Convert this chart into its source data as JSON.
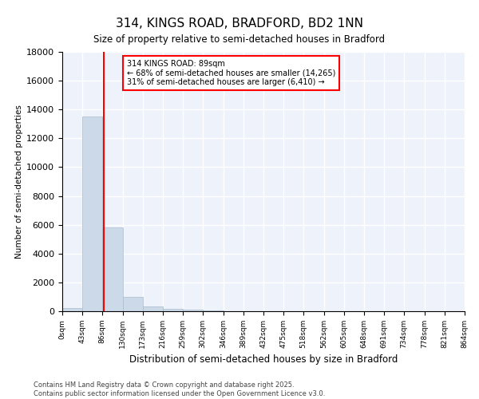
{
  "title": "314, KINGS ROAD, BRADFORD, BD2 1NN",
  "subtitle": "Size of property relative to semi-detached houses in Bradford",
  "xlabel": "Distribution of semi-detached houses by size in Bradford",
  "ylabel": "Number of semi-detached properties",
  "bar_color": "#ccd9e8",
  "bar_edge_color": "#aabccc",
  "background_color": "#eef2fb",
  "grid_color": "#ffffff",
  "red_line_x": 89,
  "annotation_title": "314 KINGS ROAD: 89sqm",
  "annotation_line1": "← 68% of semi-detached houses are smaller (14,265)",
  "annotation_line2": "31% of semi-detached houses are larger (6,410) →",
  "footer_line1": "Contains HM Land Registry data © Crown copyright and database right 2025.",
  "footer_line2": "Contains public sector information licensed under the Open Government Licence v3.0.",
  "bin_edges": [
    0,
    43,
    86,
    130,
    173,
    216,
    259,
    302,
    346,
    389,
    432,
    475,
    518,
    562,
    605,
    648,
    691,
    734,
    778,
    821,
    864
  ],
  "bin_heights": [
    200,
    13500,
    5800,
    1000,
    350,
    150,
    100,
    30,
    10,
    5,
    3,
    2,
    1,
    1,
    0,
    0,
    0,
    0,
    0,
    0
  ],
  "ylim": [
    0,
    18000
  ],
  "yticks": [
    0,
    2000,
    4000,
    6000,
    8000,
    10000,
    12000,
    14000,
    16000,
    18000
  ],
  "tick_labels": [
    "0sqm",
    "43sqm",
    "86sqm",
    "130sqm",
    "173sqm",
    "216sqm",
    "259sqm",
    "302sqm",
    "346sqm",
    "389sqm",
    "432sqm",
    "475sqm",
    "518sqm",
    "562sqm",
    "605sqm",
    "648sqm",
    "691sqm",
    "734sqm",
    "778sqm",
    "821sqm",
    "864sqm"
  ]
}
